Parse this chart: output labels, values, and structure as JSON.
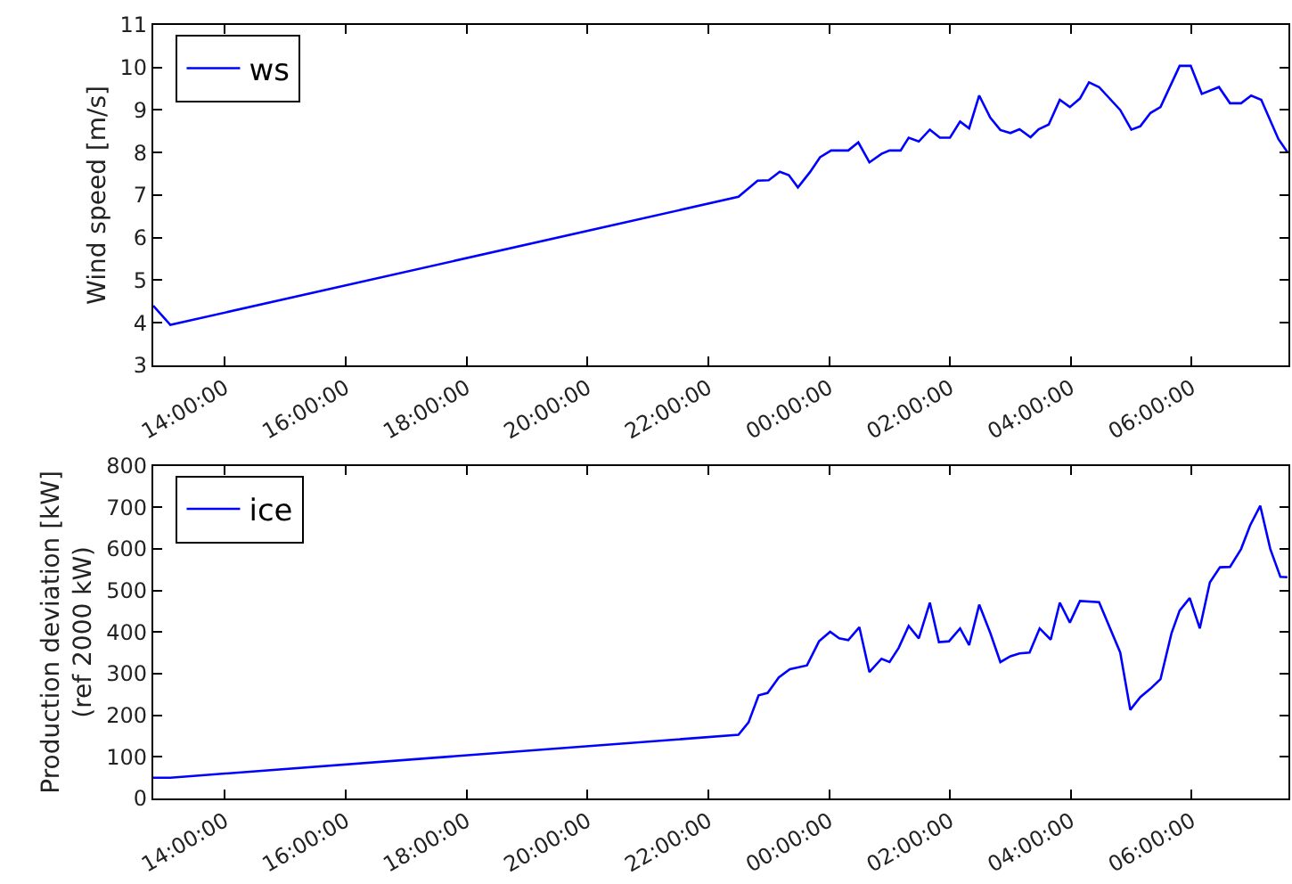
{
  "chart_data": [
    {
      "type": "line",
      "ylabel": "Wind speed [m/s]",
      "legend": "top left",
      "grid": false,
      "x": [
        "2000-01-01T12:49",
        "2000-01-01T13:06",
        "2000-01-01T22:30",
        "2000-01-01T22:49",
        "2000-01-01T23:00",
        "2000-01-01T23:11",
        "2000-01-01T23:20",
        "2000-01-01T23:29",
        "2000-01-01T23:41",
        "2000-01-01T23:51",
        "2000-01-02T00:02",
        "2000-01-02T00:19",
        "2000-01-02T00:29",
        "2000-01-02T00:40",
        "2000-01-02T00:52",
        "2000-01-02T01:00",
        "2000-01-02T01:11",
        "2000-01-02T01:19",
        "2000-01-02T01:29",
        "2000-01-02T01:40",
        "2000-01-02T01:50",
        "2000-01-02T02:00",
        "2000-01-02T02:10",
        "2000-01-02T02:19",
        "2000-01-02T02:29",
        "2000-01-02T02:40",
        "2000-01-02T02:50",
        "2000-01-02T03:00",
        "2000-01-02T03:09",
        "2000-01-02T03:20",
        "2000-01-02T03:28",
        "2000-01-02T03:38",
        "2000-01-02T03:49",
        "2000-01-02T03:59",
        "2000-01-02T04:09",
        "2000-01-02T04:18",
        "2000-01-02T04:28",
        "2000-01-02T04:49",
        "2000-01-02T05:00",
        "2000-01-02T05:09",
        "2000-01-02T05:19",
        "2000-01-02T05:29",
        "2000-01-02T05:48",
        "2000-01-02T05:59",
        "2000-01-02T06:10",
        "2000-01-02T06:27",
        "2000-01-02T06:38",
        "2000-01-02T06:49",
        "2000-01-02T06:59",
        "2000-01-02T07:09",
        "2000-01-02T07:26",
        "2000-01-02T07:35"
      ],
      "series": [
        {
          "name": "ws",
          "color": "#0000ff",
          "values": [
            4.4,
            3.95,
            6.96,
            7.34,
            7.35,
            7.55,
            7.47,
            7.18,
            7.54,
            7.89,
            8.05,
            8.05,
            8.24,
            7.77,
            7.97,
            8.05,
            8.05,
            8.35,
            8.26,
            8.54,
            8.35,
            8.35,
            8.73,
            8.57,
            9.34,
            8.82,
            8.53,
            8.46,
            8.55,
            8.36,
            8.55,
            8.66,
            9.24,
            9.07,
            9.27,
            9.65,
            9.54,
            9.0,
            8.54,
            8.62,
            8.93,
            9.07,
            10.04,
            10.04,
            9.38,
            9.54,
            9.16,
            9.16,
            9.34,
            9.24,
            8.32,
            8.01
          ]
        }
      ],
      "xlim": [
        "2000-01-01T12:49",
        "2000-01-02T07:36"
      ],
      "xticks": [
        {
          "value": "2000-01-01T14:00",
          "label": "14:00:00"
        },
        {
          "value": "2000-01-01T16:00",
          "label": "16:00:00"
        },
        {
          "value": "2000-01-01T18:00",
          "label": "18:00:00"
        },
        {
          "value": "2000-01-01T20:00",
          "label": "20:00:00"
        },
        {
          "value": "2000-01-01T22:00",
          "label": "22:00:00"
        },
        {
          "value": "2000-01-02T00:00",
          "label": "00:00:00"
        },
        {
          "value": "2000-01-02T02:00",
          "label": "02:00:00"
        },
        {
          "value": "2000-01-02T04:00",
          "label": "04:00:00"
        },
        {
          "value": "2000-01-02T06:00",
          "label": "06:00:00"
        }
      ],
      "ylim": [
        3,
        11
      ],
      "yticks": [
        3,
        4,
        5,
        6,
        7,
        8,
        9,
        10,
        11
      ]
    },
    {
      "type": "line",
      "ylabel": "Production deviation [kW]\n(ref 2000 kW)",
      "legend": "top left",
      "grid": false,
      "x": [
        "2000-01-01T12:49",
        "2000-01-01T13:06",
        "2000-01-01T22:30",
        "2000-01-01T22:40",
        "2000-01-01T22:50",
        "2000-01-01T22:59",
        "2000-01-01T23:10",
        "2000-01-01T23:21",
        "2000-01-01T23:38",
        "2000-01-01T23:50",
        "2000-01-02T00:01",
        "2000-01-02T00:10",
        "2000-01-02T00:19",
        "2000-01-02T00:30",
        "2000-01-02T00:40",
        "2000-01-02T00:52",
        "2000-01-02T01:00",
        "2000-01-02T01:09",
        "2000-01-02T01:19",
        "2000-01-02T01:29",
        "2000-01-02T01:40",
        "2000-01-02T01:49",
        "2000-01-02T01:59",
        "2000-01-02T02:10",
        "2000-01-02T02:19",
        "2000-01-02T02:29",
        "2000-01-02T02:40",
        "2000-01-02T02:50",
        "2000-01-02T03:00",
        "2000-01-02T03:09",
        "2000-01-02T03:19",
        "2000-01-02T03:29",
        "2000-01-02T03:40",
        "2000-01-02T03:49",
        "2000-01-02T03:59",
        "2000-01-02T04:09",
        "2000-01-02T04:28",
        "2000-01-02T04:49",
        "2000-01-02T04:59",
        "2000-01-02T05:09",
        "2000-01-02T05:19",
        "2000-01-02T05:29",
        "2000-01-02T05:40",
        "2000-01-02T05:48",
        "2000-01-02T05:58",
        "2000-01-02T06:08",
        "2000-01-02T06:18",
        "2000-01-02T06:28",
        "2000-01-02T06:38",
        "2000-01-02T06:49",
        "2000-01-02T06:58",
        "2000-01-02T07:08",
        "2000-01-02T07:18",
        "2000-01-02T07:28",
        "2000-01-02T07:35"
      ],
      "series": [
        {
          "name": "ice",
          "color": "#0000ff",
          "values": [
            50,
            50,
            153,
            183,
            248,
            254,
            291,
            311,
            320,
            378,
            401,
            385,
            381,
            412,
            304,
            336,
            328,
            362,
            415,
            385,
            471,
            376,
            378,
            409,
            369,
            466,
            398,
            328,
            342,
            349,
            351,
            409,
            382,
            471,
            423,
            475,
            472,
            351,
            213,
            244,
            264,
            287,
            398,
            452,
            482,
            409,
            520,
            556,
            557,
            600,
            657,
            704,
            600,
            533,
            532
          ]
        }
      ],
      "xlim": [
        "2000-01-01T12:49",
        "2000-01-02T07:36"
      ],
      "xticks": [
        {
          "value": "2000-01-01T14:00",
          "label": "14:00:00"
        },
        {
          "value": "2000-01-01T16:00",
          "label": "16:00:00"
        },
        {
          "value": "2000-01-01T18:00",
          "label": "18:00:00"
        },
        {
          "value": "2000-01-01T20:00",
          "label": "20:00:00"
        },
        {
          "value": "2000-01-01T22:00",
          "label": "22:00:00"
        },
        {
          "value": "2000-01-02T00:00",
          "label": "00:00:00"
        },
        {
          "value": "2000-01-02T02:00",
          "label": "02:00:00"
        },
        {
          "value": "2000-01-02T04:00",
          "label": "04:00:00"
        },
        {
          "value": "2000-01-02T06:00",
          "label": "06:00:00"
        }
      ],
      "ylim": [
        0,
        800
      ],
      "yticks": [
        0,
        100,
        200,
        300,
        400,
        500,
        600,
        700,
        800
      ]
    }
  ]
}
